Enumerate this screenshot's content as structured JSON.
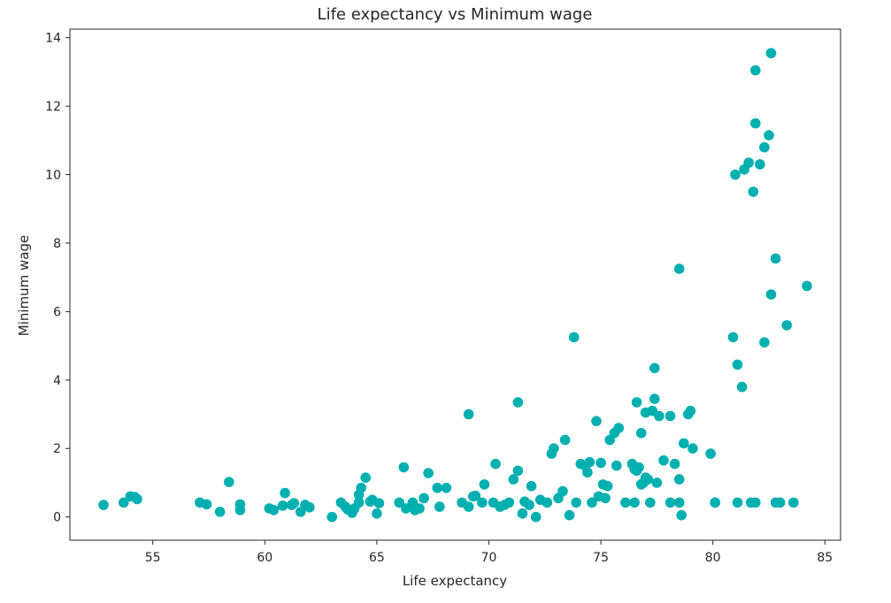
{
  "chart_data": {
    "type": "scatter",
    "title": "Life expectancy vs Minimum wage",
    "xlabel": "Life expectancy",
    "ylabel": "Minimum wage",
    "xlim": [
      51.3,
      85.7
    ],
    "ylim": [
      -0.68,
      14.25
    ],
    "xticks": [
      55,
      60,
      65,
      70,
      75,
      80,
      85
    ],
    "yticks": [
      0,
      2,
      4,
      6,
      8,
      10,
      12,
      14
    ],
    "grid": false,
    "legend": "none",
    "marker_color": "#00b0b0",
    "series": [
      {
        "x": [
          52.8,
          53.7,
          54.0,
          54.3,
          54.2,
          57.1,
          57.4,
          58.0,
          58.4,
          58.9,
          58.9,
          60.2,
          60.4,
          60.9,
          60.8,
          61.2,
          61.3,
          61.6,
          61.8,
          62.0,
          63.0,
          63.4,
          63.6,
          63.7,
          63.9,
          64.0,
          64.2,
          64.2,
          64.3,
          64.5,
          64.7,
          64.8,
          65.0,
          65.1,
          66.0,
          66.2,
          66.3,
          66.6,
          66.7,
          66.9,
          67.1,
          67.3,
          67.7,
          67.8,
          68.1,
          68.8,
          69.1,
          69.3,
          69.4,
          69.7,
          69.8,
          70.2,
          70.3,
          70.5,
          70.7,
          70.9,
          71.1,
          71.3,
          71.5,
          71.6,
          71.8,
          71.9,
          72.1,
          72.3,
          72.6,
          72.8,
          72.9,
          73.1,
          73.3,
          73.4,
          73.6,
          73.9,
          74.1,
          74.3,
          74.4,
          74.5,
          74.6,
          74.8,
          74.9,
          75.0,
          75.1,
          75.2,
          75.3,
          75.4,
          75.6,
          75.7,
          75.8,
          76.1,
          76.4,
          76.5,
          76.5,
          76.6,
          76.7,
          76.8,
          76.8,
          76.9,
          77.0,
          77.0,
          77.1,
          77.2,
          77.3,
          77.4,
          77.5,
          77.6,
          77.8,
          78.1,
          78.1,
          78.3,
          78.5,
          78.5,
          78.6,
          78.7,
          78.9,
          79.0,
          79.1,
          79.9,
          80.1,
          80.1,
          80.9,
          81.0,
          81.1,
          81.1,
          81.3,
          81.4,
          81.6,
          81.7,
          81.8,
          81.9,
          81.9,
          82.1,
          82.3,
          82.3,
          82.5,
          82.6,
          82.8,
          82.8,
          83.0,
          83.3,
          83.6,
          84.2,
          71.3,
          73.8,
          69.1,
          76.6,
          77.4,
          82.6,
          78.5,
          81.9
        ],
        "y": [
          0.35,
          0.42,
          0.6,
          0.52,
          0.58,
          0.42,
          0.37,
          0.15,
          1.02,
          0.37,
          0.2,
          0.25,
          0.2,
          0.7,
          0.33,
          0.35,
          0.4,
          0.15,
          0.35,
          0.28,
          0.0,
          0.42,
          0.3,
          0.22,
          0.12,
          0.25,
          0.65,
          0.42,
          0.85,
          1.15,
          0.45,
          0.5,
          0.1,
          0.4,
          0.42,
          1.45,
          0.25,
          0.42,
          0.2,
          0.25,
          0.55,
          1.28,
          0.85,
          0.3,
          0.85,
          0.42,
          0.3,
          0.6,
          0.62,
          0.42,
          0.95,
          0.42,
          1.55,
          0.3,
          0.35,
          0.42,
          1.1,
          1.35,
          0.1,
          0.45,
          0.35,
          0.9,
          0.0,
          0.5,
          0.42,
          1.85,
          2.0,
          0.55,
          0.75,
          2.25,
          0.05,
          0.42,
          1.55,
          1.5,
          1.3,
          1.6,
          0.42,
          2.8,
          0.6,
          1.58,
          0.95,
          0.55,
          0.9,
          2.25,
          2.45,
          1.5,
          2.6,
          0.42,
          1.55,
          1.4,
          0.42,
          1.35,
          1.45,
          0.95,
          2.45,
          1.0,
          3.05,
          1.15,
          1.1,
          0.42,
          3.1,
          3.45,
          1.0,
          2.95,
          1.65,
          2.95,
          0.42,
          1.55,
          1.1,
          0.42,
          0.05,
          2.15,
          3.0,
          3.1,
          2.0,
          1.85,
          0.42,
          0.42,
          5.25,
          10.0,
          0.42,
          4.45,
          3.8,
          10.15,
          10.35,
          0.42,
          9.5,
          11.5,
          0.42,
          10.3,
          5.1,
          10.8,
          11.15,
          6.5,
          0.42,
          7.55,
          0.42,
          5.6,
          0.42,
          6.75,
          3.35,
          5.25,
          3.0,
          3.35,
          4.35,
          13.55,
          7.25,
          13.05
        ]
      }
    ]
  }
}
